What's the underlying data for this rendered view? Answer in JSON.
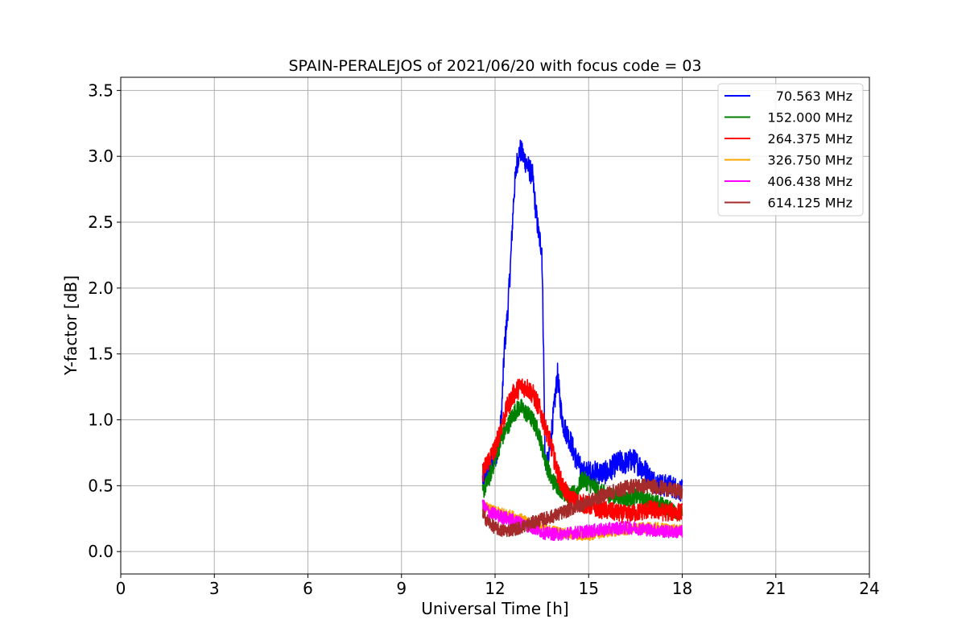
{
  "chart_data": {
    "type": "line",
    "title": "SPAIN-PERALEJOS of 2021/06/20 with focus code = 03",
    "xlabel": "Universal Time [h]",
    "ylabel": "Y-factor [dB]",
    "xlim": [
      0,
      24
    ],
    "ylim": [
      -0.17,
      3.6
    ],
    "xticks": [
      0,
      3,
      6,
      9,
      12,
      15,
      18,
      21,
      24
    ],
    "xtick_labels": [
      "0",
      "3",
      "6",
      "9",
      "12",
      "15",
      "18",
      "21",
      "24"
    ],
    "yticks": [
      0.0,
      0.5,
      1.0,
      1.5,
      2.0,
      2.5,
      3.0,
      3.5
    ],
    "ytick_labels": [
      "0.0",
      "0.5",
      "1.0",
      "1.5",
      "2.0",
      "2.5",
      "3.0",
      "3.5"
    ],
    "grid": true,
    "legend_position": "top-right",
    "series": [
      {
        "name": "70.563 MHz",
        "color": "#0000ff",
        "noise": 0.09,
        "x": [
          11.6,
          11.8,
          12.0,
          12.1,
          12.2,
          12.3,
          12.4,
          12.5,
          12.6,
          12.7,
          12.8,
          12.9,
          13.0,
          13.1,
          13.2,
          13.3,
          13.4,
          13.5,
          13.55,
          13.6,
          13.7,
          13.8,
          13.9,
          14.0,
          14.1,
          14.2,
          14.4,
          14.6,
          14.8,
          15.0,
          15.2,
          15.4,
          15.6,
          15.8,
          16.0,
          16.2,
          16.4,
          16.6,
          16.8,
          17.0,
          17.2,
          17.4,
          17.6,
          17.8,
          18.0
        ],
        "y": [
          0.55,
          0.62,
          0.72,
          0.8,
          1.0,
          1.55,
          1.8,
          2.2,
          2.7,
          2.95,
          3.05,
          3.0,
          2.95,
          2.9,
          2.85,
          2.6,
          2.4,
          2.3,
          1.6,
          0.7,
          0.65,
          0.9,
          1.1,
          1.35,
          1.1,
          0.95,
          0.85,
          0.7,
          0.6,
          0.6,
          0.6,
          0.6,
          0.6,
          0.65,
          0.68,
          0.67,
          0.7,
          0.66,
          0.62,
          0.55,
          0.52,
          0.5,
          0.5,
          0.48,
          0.46
        ]
      },
      {
        "name": "152.000 MHz",
        "color": "#008000",
        "noise": 0.07,
        "x": [
          11.6,
          11.8,
          12.0,
          12.2,
          12.4,
          12.5,
          12.6,
          12.8,
          13.0,
          13.2,
          13.4,
          13.6,
          13.8,
          14.0,
          14.2,
          14.4,
          14.6,
          14.8,
          15.0,
          15.4,
          15.8,
          16.2,
          16.6,
          17.0,
          17.4,
          17.8,
          18.0
        ],
        "y": [
          0.45,
          0.55,
          0.7,
          0.85,
          0.95,
          1.0,
          1.05,
          1.1,
          1.05,
          1.0,
          0.9,
          0.7,
          0.55,
          0.5,
          0.45,
          0.42,
          0.45,
          0.55,
          0.52,
          0.45,
          0.42,
          0.4,
          0.42,
          0.38,
          0.35,
          0.3,
          0.3
        ]
      },
      {
        "name": "264.375 MHz",
        "color": "#ff0000",
        "noise": 0.08,
        "x": [
          11.6,
          11.8,
          12.0,
          12.2,
          12.4,
          12.6,
          12.8,
          13.0,
          13.2,
          13.4,
          13.6,
          13.8,
          14.0,
          14.2,
          14.4,
          14.6,
          15.0,
          15.4,
          15.8,
          16.2,
          16.6,
          17.0,
          17.4,
          17.8,
          18.0
        ],
        "y": [
          0.6,
          0.7,
          0.78,
          0.95,
          1.1,
          1.2,
          1.25,
          1.25,
          1.2,
          1.1,
          0.95,
          0.8,
          0.6,
          0.48,
          0.4,
          0.38,
          0.35,
          0.32,
          0.3,
          0.28,
          0.3,
          0.32,
          0.3,
          0.3,
          0.3
        ]
      },
      {
        "name": "326.750 MHz",
        "color": "#ffa500",
        "noise": 0.05,
        "x": [
          11.6,
          11.8,
          12.0,
          12.4,
          12.8,
          13.2,
          13.6,
          14.0,
          14.4,
          14.8,
          15.2,
          15.6,
          16.0,
          16.4,
          16.8,
          17.2,
          17.6,
          18.0
        ],
        "y": [
          0.35,
          0.32,
          0.3,
          0.28,
          0.25,
          0.2,
          0.17,
          0.15,
          0.13,
          0.12,
          0.13,
          0.15,
          0.16,
          0.17,
          0.18,
          0.18,
          0.17,
          0.16
        ]
      },
      {
        "name": "406.438 MHz",
        "color": "#ff00ff",
        "noise": 0.06,
        "x": [
          11.6,
          11.8,
          12.0,
          12.4,
          12.8,
          13.2,
          13.6,
          14.0,
          14.4,
          14.8,
          15.2,
          15.6,
          16.0,
          16.4,
          16.8,
          17.2,
          17.6,
          18.0
        ],
        "y": [
          0.35,
          0.3,
          0.28,
          0.25,
          0.22,
          0.18,
          0.14,
          0.13,
          0.14,
          0.15,
          0.16,
          0.17,
          0.18,
          0.18,
          0.17,
          0.16,
          0.15,
          0.15
        ]
      },
      {
        "name": "614.125 MHz",
        "color": "#a52a2a",
        "noise": 0.06,
        "x": [
          11.6,
          11.8,
          12.0,
          12.2,
          12.4,
          12.6,
          12.8,
          13.0,
          13.2,
          13.6,
          14.0,
          14.4,
          14.8,
          15.2,
          15.6,
          16.0,
          16.4,
          16.8,
          17.2,
          17.6,
          18.0
        ],
        "y": [
          0.28,
          0.22,
          0.18,
          0.16,
          0.16,
          0.17,
          0.18,
          0.2,
          0.22,
          0.25,
          0.28,
          0.32,
          0.36,
          0.4,
          0.44,
          0.47,
          0.5,
          0.5,
          0.49,
          0.47,
          0.45
        ]
      }
    ]
  }
}
